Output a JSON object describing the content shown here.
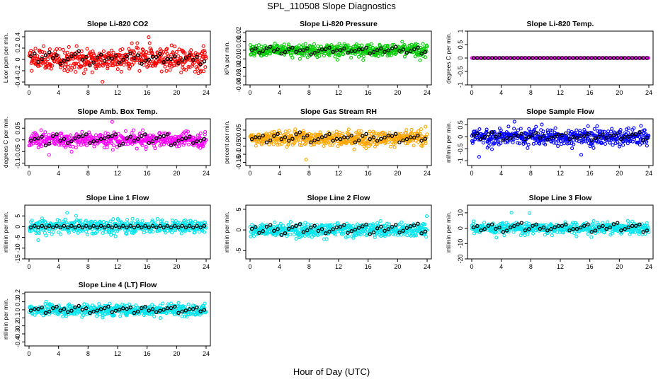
{
  "figure": {
    "title": "SPL_110508  Slope Diagnostics",
    "xlabel": "Hour of Day (UTC)"
  },
  "chart_data": [
    {
      "type": "scatter",
      "title": "Slope Li-820 CO2",
      "ylabel": "Licor ppm per min.",
      "xlim": [
        0,
        24
      ],
      "xticks": [
        0,
        4,
        8,
        12,
        16,
        20,
        24
      ],
      "ylim": [
        -0.45,
        0.5
      ],
      "yticks": [
        -0.4,
        -0.2,
        0.0,
        0.2,
        0.4
      ],
      "color": "#ff0000",
      "spread": 0.17,
      "npts": 500,
      "hourly_black": [
        0.08,
        -0.02,
        0.1,
        0.05,
        -0.05,
        0.03,
        0.12,
        0.02,
        -0.08,
        0.06,
        0.0,
        0.04,
        -0.03,
        0.08,
        0.05,
        -0.05,
        0.02,
        0.07,
        -0.02,
        0.03,
        -0.04,
        0.05,
        0.02,
        -0.06
      ]
    },
    {
      "type": "scatter",
      "title": "Slope Li-820 Pressure",
      "ylabel": "kPa per min.",
      "xlim": [
        0,
        24
      ],
      "xticks": [
        0,
        4,
        8,
        12,
        16,
        20,
        24
      ],
      "ylim": [
        -0.04,
        0.022
      ],
      "yticks": [
        -0.04,
        -0.03,
        -0.02,
        -0.01,
        0.0,
        0.01,
        0.02
      ],
      "color": "#00cc00",
      "spread": 0.006,
      "npts": 500,
      "hourly_black": [
        0.001,
        -0.002,
        0.003,
        0.0,
        -0.003,
        0.002,
        -0.001,
        0.001,
        -0.004,
        0.0,
        0.002,
        -0.001,
        0.001,
        -0.002,
        0.0,
        0.002,
        -0.003,
        0.001,
        -0.001,
        0.003,
        0.0,
        -0.002,
        0.002,
        -0.003
      ]
    },
    {
      "type": "scatter",
      "title": "Slope Li-820 Temp.",
      "ylabel": "degrees C per min.",
      "xlim": [
        0,
        24
      ],
      "xticks": [
        0,
        4,
        8,
        12,
        16,
        20,
        24
      ],
      "ylim": [
        -1.0,
        1.0
      ],
      "yticks": [
        -1.0,
        -0.5,
        0.0,
        0.5,
        1.0
      ],
      "color": "#ff00ff",
      "spread": 0.0,
      "npts": 300,
      "hourly_black": [
        0,
        0,
        0,
        0,
        0,
        0,
        0,
        0,
        0,
        0,
        0,
        0,
        0,
        0,
        0,
        0,
        0,
        0,
        0,
        0,
        0,
        0,
        0,
        0
      ]
    },
    {
      "type": "scatter",
      "title": "Slope Amb. Box Temp.",
      "ylabel": "degrees C per min.",
      "xlim": [
        0,
        24
      ],
      "xticks": [
        0,
        4,
        8,
        12,
        16,
        20,
        24
      ],
      "ylim": [
        -0.11,
        0.09
      ],
      "yticks": [
        -0.1,
        -0.05,
        0.0,
        0.05
      ],
      "color": "#ff00ff",
      "spread": 0.025,
      "npts": 500,
      "hourly_black": [
        0.0,
        0.01,
        -0.02,
        0.02,
        0.0,
        -0.01,
        0.01,
        0.02,
        -0.01,
        0.0,
        0.01,
        0.02,
        -0.02,
        0.01,
        0.0,
        0.02,
        -0.01,
        0.01,
        0.02,
        -0.02,
        0.0,
        0.01,
        -0.01,
        0.0
      ]
    },
    {
      "type": "scatter",
      "title": "Slope Gas Stream RH",
      "ylabel": "percent per min.",
      "xlim": [
        0,
        24
      ],
      "xticks": [
        0,
        4,
        8,
        12,
        16,
        20,
        24
      ],
      "ylim": [
        -0.17,
        0.12
      ],
      "yticks": [
        -0.15,
        -0.1,
        -0.05,
        0.0,
        0.05
      ],
      "color": "#ffa500",
      "spread": 0.04,
      "npts": 500,
      "hourly_black": [
        0.0,
        0.01,
        -0.02,
        0.02,
        0.0,
        -0.01,
        0.03,
        0.01,
        -0.02,
        0.0,
        0.02,
        -0.01,
        0.0,
        0.01,
        -0.02,
        0.02,
        0.0,
        -0.01,
        0.01,
        0.02,
        -0.02,
        0.0,
        0.01,
        -0.01
      ]
    },
    {
      "type": "scatter",
      "title": "Slope Sample Flow",
      "ylabel": "ml/min per min.",
      "xlim": [
        0,
        24
      ],
      "xticks": [
        0,
        4,
        8,
        12,
        16,
        20,
        24
      ],
      "ylim": [
        -1.2,
        0.75
      ],
      "yticks": [
        -1.0,
        -0.5,
        0.0,
        0.5
      ],
      "color": "#0000ff",
      "spread": 0.3,
      "npts": 500,
      "hourly_black": [
        0.1,
        -0.05,
        0.15,
        0.05,
        -0.1,
        0.0,
        0.08,
        -0.05,
        0.12,
        0.0,
        -0.08,
        0.05,
        0.1,
        -0.05,
        0.0,
        0.08,
        -0.1,
        0.05,
        0.0,
        0.1,
        -0.05,
        0.05,
        0.15,
        -0.1
      ]
    },
    {
      "type": "scatter",
      "title": "Slope Line 1 Flow",
      "ylabel": "ml/min per min.",
      "xlim": [
        0,
        24
      ],
      "xticks": [
        0,
        4,
        8,
        12,
        16,
        20,
        24
      ],
      "ylim": [
        -15,
        10
      ],
      "yticks": [
        -15,
        -10,
        -5,
        0,
        5
      ],
      "color": "#00e5ee",
      "spread": 2.5,
      "npts": 500,
      "hourly_black": [
        0,
        0,
        0,
        0,
        0,
        0,
        0,
        0,
        0,
        0,
        0,
        0,
        0,
        0,
        0,
        0,
        0,
        0,
        0,
        0,
        0,
        0,
        0,
        0
      ]
    },
    {
      "type": "scatter",
      "title": "Slope Line 2 Flow",
      "ylabel": "ml/min per min.",
      "xlim": [
        0,
        24
      ],
      "xticks": [
        0,
        4,
        8,
        12,
        16,
        20,
        24
      ],
      "ylim": [
        -7,
        6
      ],
      "yticks": [
        -5,
        0,
        5
      ],
      "color": "#00e5ee",
      "spread": 1.4,
      "npts": 500,
      "hourly_black": [
        0.5,
        -0.5,
        1.0,
        0.0,
        -1.0,
        0.5,
        1.2,
        -0.3,
        0.8,
        0.0,
        -0.6,
        0.4,
        1.0,
        -0.5,
        0.3,
        1.1,
        -0.8,
        0.6,
        0.0,
        1.0,
        -0.4,
        0.7,
        1.3,
        -0.6
      ]
    },
    {
      "type": "scatter",
      "title": "Slope Line 3 Flow",
      "ylabel": "ml/min per min.",
      "xlim": [
        0,
        24
      ],
      "xticks": [
        0,
        4,
        8,
        12,
        16,
        20,
        24
      ],
      "ylim": [
        -20,
        15
      ],
      "yticks": [
        -20,
        -10,
        0,
        10
      ],
      "color": "#00e5ee",
      "spread": 3.0,
      "npts": 500,
      "hourly_black": [
        1,
        -1,
        2,
        0,
        -2,
        1,
        3,
        -1,
        2,
        0,
        -1,
        1,
        2,
        -1,
        0,
        2,
        -2,
        1,
        0,
        3,
        -1,
        1,
        2,
        -2
      ]
    },
    {
      "type": "scatter",
      "title": "Slope Line 4 (LT) Flow",
      "ylabel": "ml/min per min.",
      "xlim": [
        0,
        24
      ],
      "xticks": [
        0,
        4,
        8,
        12,
        16,
        20,
        24
      ],
      "ylim": [
        -0.45,
        0.22
      ],
      "yticks": [
        -0.4,
        -0.3,
        -0.2,
        -0.1,
        0.0,
        0.1,
        0.2
      ],
      "color": "#00e5ee",
      "spread": 0.06,
      "npts": 500,
      "hourly_black": [
        0.0,
        0.02,
        -0.03,
        0.03,
        0.0,
        -0.02,
        0.04,
        0.01,
        -0.03,
        0.0,
        0.03,
        -0.02,
        0.01,
        0.02,
        -0.03,
        0.03,
        0.0,
        -0.02,
        0.01,
        0.03,
        -0.03,
        0.0,
        0.02,
        -0.01
      ]
    }
  ]
}
